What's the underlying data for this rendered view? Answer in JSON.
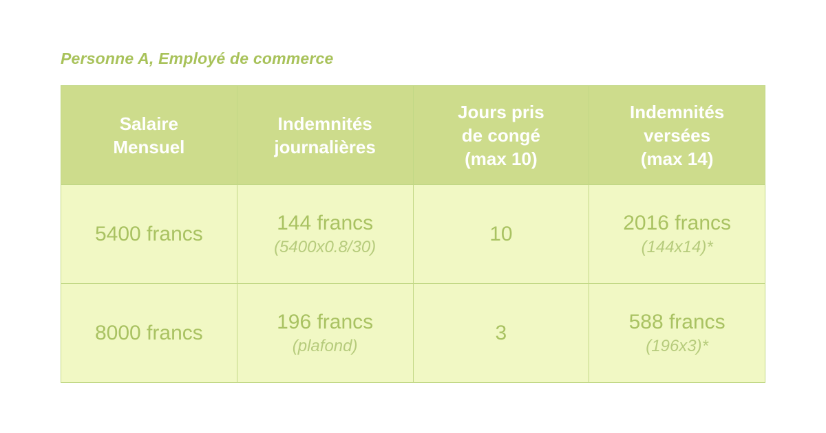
{
  "title": "Personne A, Employé de commerce",
  "table": {
    "headers": [
      [
        "Salaire",
        "Mensuel"
      ],
      [
        "Indemnités",
        "journalières"
      ],
      [
        "Jours pris",
        "de congé",
        "(max 10)"
      ],
      [
        "Indemnités",
        "versées",
        "(max 14)"
      ]
    ],
    "rows": [
      {
        "salary": "5400 francs",
        "daily": "144 francs",
        "daily_note": "(5400x0.8/30)",
        "days": "10",
        "paid": "2016 francs",
        "paid_note": "(144x14)*"
      },
      {
        "salary": "8000 francs",
        "daily": "196 francs",
        "daily_note": "(plafond)",
        "days": "3",
        "paid": "588 francs",
        "paid_note": "(196x3)*"
      }
    ]
  },
  "colors": {
    "title": "#a8c25a",
    "header_bg": "#cddc8c",
    "cell_bg": "#f1f8c4",
    "border": "#c2d886",
    "text": "#a9c262"
  }
}
